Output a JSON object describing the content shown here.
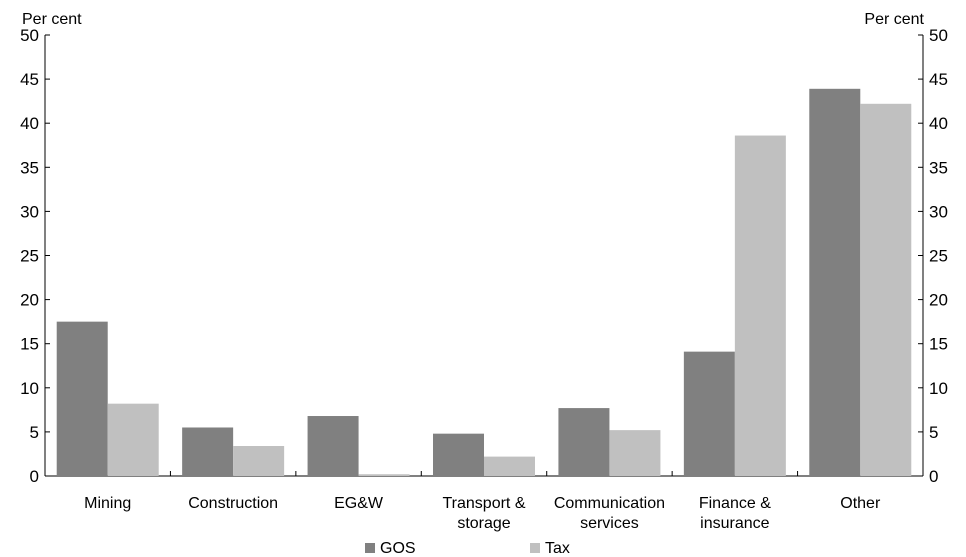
{
  "chart_data": {
    "type": "bar",
    "title": "",
    "ylabel_left": "Per cent",
    "ylabel_right": "Per cent",
    "ylim": [
      0,
      50
    ],
    "yticks": [
      0,
      5,
      10,
      15,
      20,
      25,
      30,
      35,
      40,
      45,
      50
    ],
    "grid": false,
    "legend_position": "bottom",
    "categories": [
      [
        "Mining"
      ],
      [
        "Construction"
      ],
      [
        "EG&W"
      ],
      [
        "Transport &",
        "storage"
      ],
      [
        "Communication",
        "services"
      ],
      [
        "Finance &",
        "insurance"
      ],
      [
        "Other"
      ]
    ],
    "series": [
      {
        "name": "GOS",
        "color": "#808080",
        "values": [
          17.5,
          5.5,
          6.8,
          4.8,
          7.7,
          14.1,
          43.9
        ]
      },
      {
        "name": "Tax",
        "color": "#c0c0c0",
        "values": [
          8.2,
          3.4,
          0.2,
          2.2,
          5.2,
          38.6,
          42.2
        ]
      }
    ]
  }
}
